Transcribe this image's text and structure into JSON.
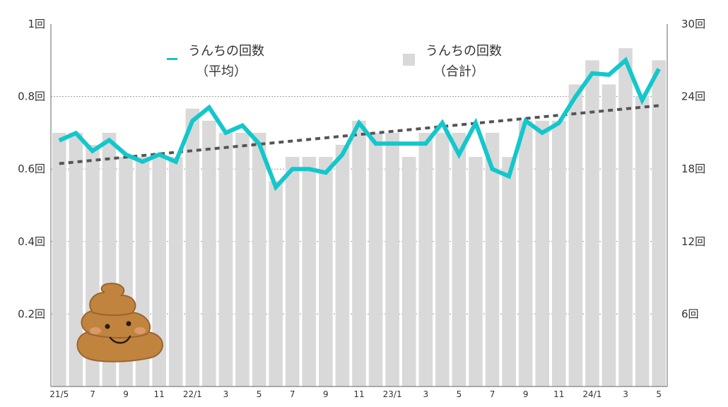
{
  "chart_data": {
    "type": "bar",
    "x_tick_labels": [
      "21/5",
      "7",
      "9",
      "11",
      "22/1",
      "3",
      "5",
      "7",
      "9",
      "11",
      "23/1",
      "3",
      "5",
      "7",
      "9",
      "11",
      "24/1",
      "3",
      "5"
    ],
    "left_axis": {
      "ticks": [
        0.2,
        0.4,
        0.6,
        0.8,
        1
      ],
      "tick_labels": [
        "0.2回",
        "0.4回",
        "0.6回",
        "0.8回",
        "1回"
      ],
      "range": [
        0,
        1
      ]
    },
    "right_axis": {
      "ticks": [
        6,
        12,
        18,
        24,
        30
      ],
      "tick_labels": [
        "6回",
        "12回",
        "18回",
        "24回",
        "30回"
      ],
      "range": [
        0,
        30
      ]
    },
    "grid": true,
    "series": [
      {
        "name_line1": "うんちの回数",
        "name_line2": "（合計）",
        "type": "bar",
        "axis": "right",
        "color": "#d9d9d9",
        "values": [
          21,
          21,
          20,
          21,
          19,
          19,
          19,
          19,
          23,
          22,
          21,
          21,
          21,
          17,
          19,
          19,
          19,
          20,
          22,
          21,
          21,
          19,
          21,
          21,
          21,
          19,
          21,
          19,
          22,
          22,
          22,
          25,
          27,
          25,
          28,
          24,
          27
        ]
      },
      {
        "name_line1": "うんちの回数",
        "name_line2": "（平均）",
        "type": "line",
        "axis": "left",
        "color": "#13c7cc",
        "values": [
          0.679,
          0.699,
          0.65,
          0.68,
          0.64,
          0.62,
          0.64,
          0.62,
          0.733,
          0.77,
          0.7,
          0.72,
          0.67,
          0.55,
          0.6,
          0.6,
          0.59,
          0.64,
          0.727,
          0.67,
          0.67,
          0.67,
          0.67,
          0.727,
          0.64,
          0.727,
          0.6,
          0.58,
          0.733,
          0.7,
          0.727,
          0.8,
          0.864,
          0.86,
          0.9,
          0.79,
          0.876
        ]
      },
      {
        "type": "trendline",
        "axis": "left",
        "color": "#555555",
        "start": 0.615,
        "end": 0.775
      }
    ]
  },
  "colors": {
    "line": "#13c7cc",
    "bar": "#d9d9d9",
    "trend": "#555555",
    "grid": "#999999"
  },
  "decoration": {
    "icon": "poop-illustration"
  }
}
